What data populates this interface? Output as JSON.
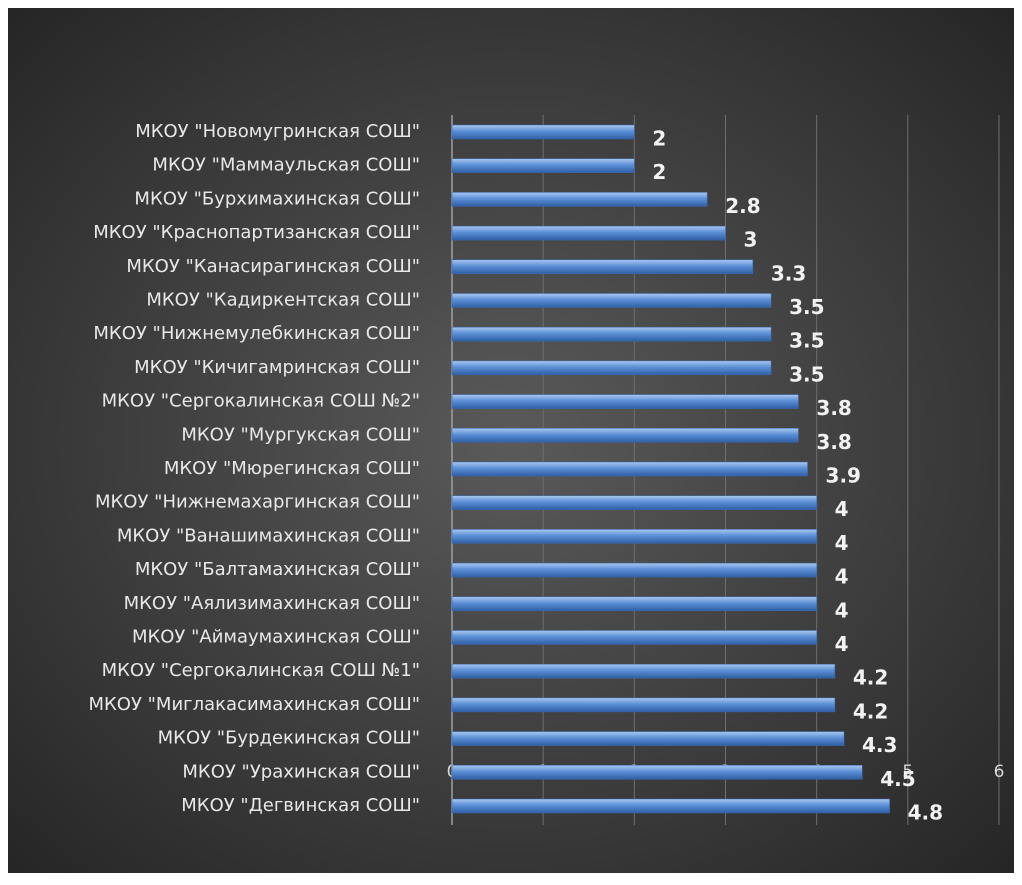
{
  "chart_data": {
    "type": "bar",
    "orientation": "horizontal",
    "categories": [
      "МКОУ \"Новомугринская СОШ\"",
      "МКОУ \"Маммаульская СОШ\"",
      "МКОУ \"Бурхимахинская СОШ\"",
      "МКОУ \"Краснопартизанская СОШ\"",
      "МКОУ \"Канасирагинская СОШ\"",
      "МКОУ \"Кадиркентская СОШ\"",
      "МКОУ \"Нижнемулебкинская СОШ\"",
      "МКОУ \"Кичигамринская СОШ\"",
      "МКОУ \"Сергокалинская СОШ №2\"",
      "МКОУ \"Мургукская СОШ\"",
      "МКОУ \"Мюрегинская СОШ\"",
      "МКОУ \"Нижнемахаргинская СОШ\"",
      "МКОУ \"Ванашимахинская СОШ\"",
      "МКОУ \"Балтамахинская СОШ\"",
      "МКОУ \"Аялизимахинская СОШ\"",
      "МКОУ \"Аймаумахинская СОШ\"",
      "МКОУ \"Сергокалинская СОШ №1\"",
      "МКОУ \"Миглакасимахинская СОШ\"",
      "МКОУ \"Бурдекинская СОШ\"",
      "МКОУ \"Урахинская СОШ\"",
      "МКОУ \"Дегвинская СОШ\""
    ],
    "values": [
      2,
      2,
      2.8,
      3,
      3.3,
      3.5,
      3.5,
      3.5,
      3.8,
      3.8,
      3.9,
      4,
      4,
      4,
      4,
      4,
      4.2,
      4.2,
      4.3,
      4.5,
      4.8
    ],
    "color": "#5b8fd6",
    "xlim": [
      0,
      6
    ],
    "xticks": [
      0,
      1,
      2,
      3,
      4,
      5,
      6
    ],
    "grid": true
  }
}
